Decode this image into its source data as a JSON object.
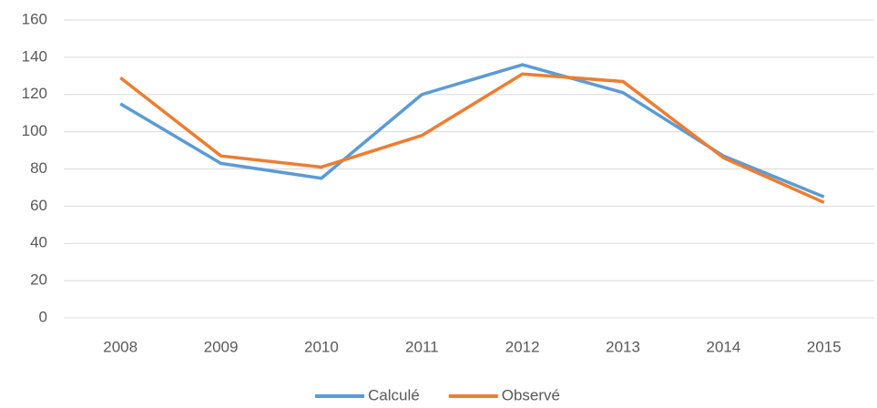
{
  "chart_data": {
    "type": "line",
    "categories": [
      "2008",
      "2009",
      "2010",
      "2011",
      "2012",
      "2013",
      "2014",
      "2015"
    ],
    "series": [
      {
        "name": "Calculé",
        "color": "#5b9bd5",
        "values": [
          115,
          83,
          75,
          120,
          136,
          121,
          87,
          65
        ]
      },
      {
        "name": "Observé",
        "color": "#ed7d31",
        "values": [
          129,
          87,
          81,
          98,
          131,
          127,
          86,
          62
        ]
      }
    ],
    "ylim": [
      0,
      160
    ],
    "yticks": [
      0,
      20,
      40,
      60,
      80,
      100,
      120,
      140,
      160
    ],
    "grid": true,
    "legend": "bottom"
  }
}
